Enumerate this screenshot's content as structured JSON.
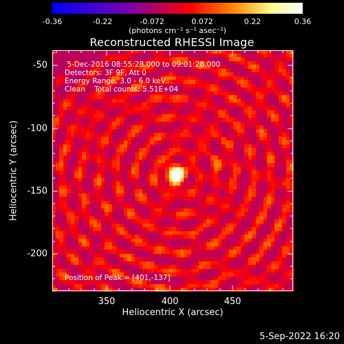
{
  "colorbar": {
    "ticks": [
      "-0.36",
      "-0.22",
      "-0.072",
      "0.072",
      "0.22",
      "0.36"
    ],
    "units": "(photons cm⁻² s⁻¹ asec⁻²)",
    "range": [
      -0.36,
      0.36
    ],
    "colormap": [
      "#0000ff",
      "#7a00b4",
      "#ff0000",
      "#ff8800",
      "#ffff90",
      "#ffffff"
    ]
  },
  "title": "Reconstructed RHESSI Image",
  "annotations": {
    "line1": " 5-Dec-2016 08:55:28.000 to 09:01:28.000",
    "line2": "Detectors: 3F 9F, Att 0",
    "line3": "Energy Range: 3.0 - 6.0 keV",
    "line4": "Clean    Total counts: 5.51E+04",
    "peak": "Position of Peak = [401,-137]"
  },
  "axes": {
    "xlabel": "Heliocentric X (arcsec)",
    "ylabel": "Heliocentric Y (arcsec)",
    "xticks": [
      "350",
      "400",
      "450"
    ],
    "yticks": [
      "-50",
      "-100",
      "-150",
      "-200"
    ],
    "xrange": [
      305,
      495
    ],
    "yrange": [
      -230,
      -40
    ]
  },
  "image": {
    "peak_x": 401,
    "peak_y": -137,
    "secondary_source_x": 436,
    "secondary_source_y": -130
  },
  "timestamp": "5-Sep-2022 16:20"
}
